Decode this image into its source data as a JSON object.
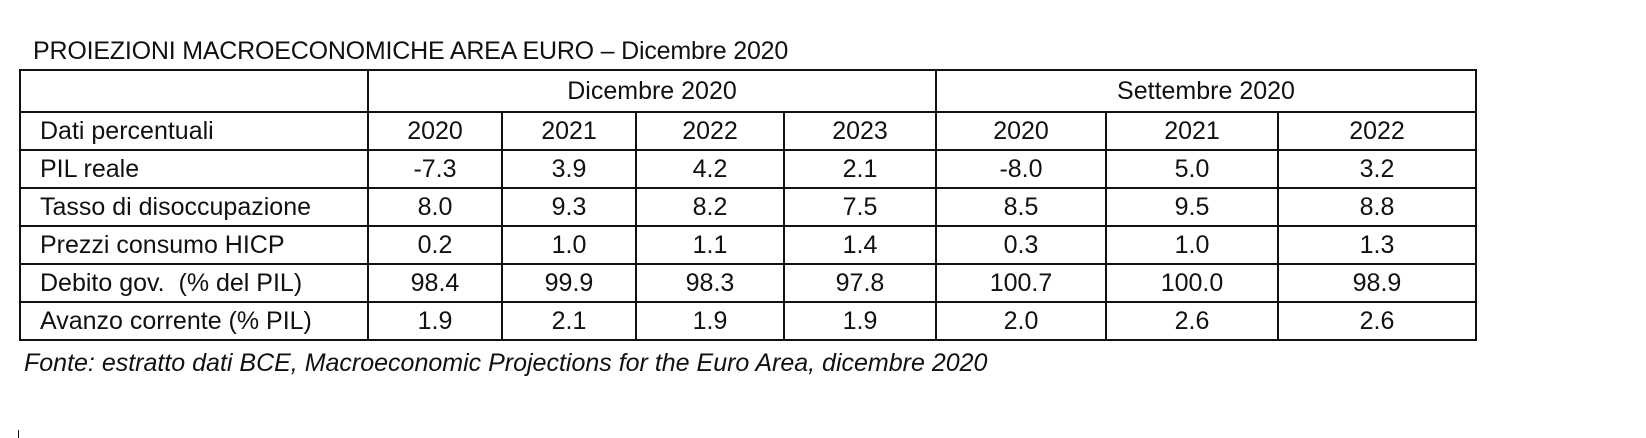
{
  "title": "PROIEZIONI MACROECONOMICHE AREA EURO – Dicembre 2020",
  "table": {
    "groups": [
      "Dicembre 2020",
      "Settembre 2020"
    ],
    "header_label": "Dati percentuali",
    "years": [
      "2020",
      "2021",
      "2022",
      "2023",
      "2020",
      "2021",
      "2022"
    ],
    "rows": [
      {
        "label": "PIL reale",
        "values": [
          "-7.3",
          "3.9",
          "4.2",
          "2.1",
          "-8.0",
          "5.0",
          "3.2"
        ]
      },
      {
        "label": "Tasso di disoccupazione",
        "values": [
          "8.0",
          "9.3",
          "8.2",
          "7.5",
          "8.5",
          "9.5",
          "8.8"
        ]
      },
      {
        "label": "Prezzi consumo HICP",
        "values": [
          "0.2",
          "1.0",
          "1.1",
          "1.4",
          "0.3",
          "1.0",
          "1.3"
        ]
      },
      {
        "label": "Debito gov.  (% del PIL)",
        "values": [
          "98.4",
          "99.9",
          "98.3",
          "97.8",
          "100.7",
          "100.0",
          "98.9"
        ]
      },
      {
        "label": "Avanzo corrente (% PIL)",
        "values": [
          "1.9",
          "2.1",
          "1.9",
          "1.9",
          "2.0",
          "2.6",
          "2.6"
        ]
      }
    ]
  },
  "source": "Fonte: estratto dati BCE, Macroeconomic Projections for the Euro Area, dicembre 2020"
}
